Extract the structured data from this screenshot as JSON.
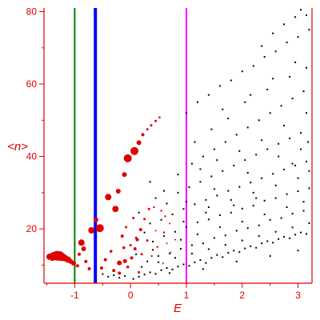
{
  "chart_data": {
    "type": "scatter",
    "xlabel": "E",
    "ylabel": "<n>",
    "xlim": [
      -1.55,
      3.25
    ],
    "ylim": [
      5,
      81
    ],
    "x_ticks": [
      -1,
      0,
      1,
      2,
      3
    ],
    "x_tick_labels": [
      "-1",
      "0",
      "1",
      "2",
      "3"
    ],
    "y_ticks": [
      20,
      40,
      60,
      80
    ],
    "y_tick_labels": [
      "20",
      "40",
      "60",
      "80"
    ],
    "grid": false,
    "colors": {
      "axes": "#e00000",
      "red_series": "#e00000",
      "black_series": "#000000",
      "line_green": "#008000",
      "line_blue": "#0000ff",
      "line_magenta": "#ff00ff"
    },
    "vertical_lines": [
      {
        "x": -1.0,
        "color": "#008000"
      },
      {
        "x": -0.63,
        "color": "#0000ff"
      },
      {
        "x": 1.0,
        "color": "#ff00ff"
      }
    ],
    "series": [
      {
        "color": "#e00000",
        "marker": "circle",
        "points": [
          [
            -1.45,
            12.3,
            4
          ],
          [
            -1.38,
            12.5,
            5
          ],
          [
            -1.32,
            12.6,
            6
          ],
          [
            -1.27,
            12.5,
            6
          ],
          [
            -1.22,
            12.2,
            5
          ],
          [
            -1.17,
            11.9,
            4
          ],
          [
            -1.12,
            11.5,
            4
          ],
          [
            -1.07,
            11.0,
            3
          ],
          [
            -1.02,
            10.5,
            3
          ],
          [
            -0.95,
            9.8,
            2
          ],
          [
            -1.3,
            13.0,
            3
          ],
          [
            -1.4,
            11.8,
            3
          ],
          [
            -0.88,
            16.2,
            4
          ],
          [
            -0.84,
            14.5,
            3
          ],
          [
            -0.92,
            13.0,
            2
          ],
          [
            -0.8,
            11.0,
            2
          ],
          [
            -0.74,
            9.0,
            2
          ],
          [
            -0.7,
            19.6,
            4
          ],
          [
            -0.62,
            22.5,
            3
          ],
          [
            -0.55,
            20.2,
            5
          ],
          [
            -0.4,
            28.8,
            4
          ],
          [
            -0.27,
            25.5,
            4
          ],
          [
            -0.22,
            30.4,
            3
          ],
          [
            -0.11,
            35.0,
            3
          ],
          [
            -0.05,
            39.5,
            5
          ],
          [
            0.07,
            41.5,
            5
          ],
          [
            0.15,
            43.8,
            3
          ],
          [
            0.22,
            46.0,
            2
          ],
          [
            0.3,
            47.5,
            1.5
          ],
          [
            0.37,
            48.6,
            1.5
          ],
          [
            0.45,
            49.8,
            1.5
          ],
          [
            0.52,
            50.8,
            1.3
          ],
          [
            -0.2,
            10.6,
            3
          ],
          [
            -0.1,
            11.1,
            2.5
          ],
          [
            0.02,
            12.0,
            2
          ],
          [
            0.08,
            14.5,
            2
          ],
          [
            0.12,
            17.0,
            2
          ],
          [
            0.18,
            19.8,
            2
          ],
          [
            0.25,
            22.7,
            1.5
          ],
          [
            0.33,
            25.5,
            1.5
          ],
          [
            0.42,
            26.0,
            1.2
          ],
          [
            0.55,
            25.0,
            1.2
          ],
          [
            0.62,
            23.5,
            1.2
          ],
          [
            -0.15,
            18.0,
            2
          ],
          [
            -0.08,
            20.5,
            1.5
          ],
          [
            0.05,
            23.0,
            1.5
          ],
          [
            0.1,
            17.5,
            1.5
          ],
          [
            -0.12,
            14.8,
            1.8
          ],
          [
            0.0,
            15.5,
            1.5
          ],
          [
            0.2,
            13.0,
            1.5
          ],
          [
            0.3,
            16.8,
            1.5
          ],
          [
            -0.3,
            8.5,
            2
          ],
          [
            -0.2,
            7.8,
            2
          ],
          [
            -0.05,
            9.5,
            1.8
          ],
          [
            0.15,
            8.0,
            1.5
          ],
          [
            0.38,
            12.5,
            1.2
          ],
          [
            0.48,
            15.0,
            1.2
          ],
          [
            0.6,
            19.0,
            1.2
          ],
          [
            0.7,
            21.5,
            1.0
          ],
          [
            0.8,
            17.0,
            1.0
          ],
          [
            0.58,
            10.5,
            1.0
          ],
          [
            0.72,
            13.5,
            1.0
          ],
          [
            -0.45,
            11.5,
            2
          ],
          [
            -0.52,
            9.2,
            2
          ],
          [
            -0.35,
            13.8,
            1.8
          ],
          [
            0.45,
            19.5,
            1.0
          ],
          [
            0.65,
            16.0,
            1.0
          ]
        ]
      },
      {
        "color": "#000000",
        "marker": "dot",
        "points": [
          [
            -0.5,
            7.5
          ],
          [
            -0.4,
            6.8
          ],
          [
            -0.3,
            7.2
          ],
          [
            -0.2,
            6.5
          ],
          [
            -0.1,
            7.0
          ],
          [
            0.05,
            6.2
          ],
          [
            0.15,
            6.8
          ],
          [
            0.25,
            7.4
          ],
          [
            0.35,
            8.0
          ],
          [
            0.45,
            7.6
          ],
          [
            0.55,
            8.6
          ],
          [
            0.65,
            9.2
          ],
          [
            0.75,
            8.8
          ],
          [
            0.85,
            9.6
          ],
          [
            0.95,
            10.2
          ],
          [
            1.05,
            9.8
          ],
          [
            1.15,
            10.8
          ],
          [
            1.25,
            11.4
          ],
          [
            1.35,
            10.6
          ],
          [
            1.45,
            12.0
          ],
          [
            1.55,
            12.8
          ],
          [
            1.65,
            12.2
          ],
          [
            1.75,
            13.4
          ],
          [
            1.85,
            14.0
          ],
          [
            1.95,
            13.6
          ],
          [
            2.05,
            14.6
          ],
          [
            2.15,
            15.2
          ],
          [
            2.25,
            14.8
          ],
          [
            2.35,
            16.0
          ],
          [
            2.45,
            16.6
          ],
          [
            2.55,
            16.2
          ],
          [
            2.65,
            17.2
          ],
          [
            2.75,
            17.8
          ],
          [
            2.85,
            17.4
          ],
          [
            2.95,
            18.4
          ],
          [
            3.05,
            19.0
          ],
          [
            3.15,
            18.6
          ],
          [
            0.3,
            11.0
          ],
          [
            0.5,
            12.5
          ],
          [
            0.7,
            13.2
          ],
          [
            0.9,
            14.5
          ],
          [
            1.1,
            15.5
          ],
          [
            1.3,
            16.0
          ],
          [
            1.5,
            17.5
          ],
          [
            1.7,
            18.2
          ],
          [
            1.9,
            19.5
          ],
          [
            2.1,
            20.2
          ],
          [
            2.3,
            21.0
          ],
          [
            2.5,
            22.5
          ],
          [
            2.7,
            23.0
          ],
          [
            2.9,
            24.2
          ],
          [
            3.1,
            25.0
          ],
          [
            0.4,
            16.5
          ],
          [
            0.6,
            18.0
          ],
          [
            0.8,
            19.2
          ],
          [
            1.0,
            20.5
          ],
          [
            1.2,
            21.8
          ],
          [
            1.4,
            22.6
          ],
          [
            1.6,
            23.8
          ],
          [
            1.8,
            24.5
          ],
          [
            2.0,
            25.6
          ],
          [
            2.2,
            26.4
          ],
          [
            2.4,
            27.8
          ],
          [
            2.6,
            28.5
          ],
          [
            2.8,
            29.6
          ],
          [
            3.0,
            30.4
          ],
          [
            3.2,
            31.2
          ],
          [
            0.55,
            22.5
          ],
          [
            0.75,
            24.0
          ],
          [
            0.95,
            25.5
          ],
          [
            1.15,
            26.8
          ],
          [
            1.35,
            28.0
          ],
          [
            1.55,
            29.2
          ],
          [
            1.75,
            30.5
          ],
          [
            1.95,
            31.6
          ],
          [
            2.15,
            32.8
          ],
          [
            2.35,
            34.0
          ],
          [
            2.55,
            35.2
          ],
          [
            2.75,
            36.4
          ],
          [
            2.95,
            37.5
          ],
          [
            3.15,
            38.6
          ],
          [
            0.85,
            30.0
          ],
          [
            1.05,
            31.5
          ],
          [
            1.25,
            33.0
          ],
          [
            1.45,
            34.5
          ],
          [
            1.65,
            36.0
          ],
          [
            1.85,
            37.5
          ],
          [
            2.05,
            39.0
          ],
          [
            2.25,
            40.5
          ],
          [
            2.45,
            42.0
          ],
          [
            2.65,
            43.5
          ],
          [
            2.85,
            45.0
          ],
          [
            3.05,
            46.5
          ],
          [
            1.1,
            38.0
          ],
          [
            1.3,
            40.0
          ],
          [
            1.5,
            42.0
          ],
          [
            1.7,
            44.0
          ],
          [
            1.9,
            46.0
          ],
          [
            2.1,
            48.0
          ],
          [
            2.3,
            50.0
          ],
          [
            2.5,
            52.0
          ],
          [
            2.7,
            54.0
          ],
          [
            2.9,
            56.0
          ],
          [
            3.1,
            58.0
          ],
          [
            1.0,
            52.0
          ],
          [
            1.2,
            55.0
          ],
          [
            1.4,
            57.0
          ],
          [
            1.6,
            59.5
          ],
          [
            1.8,
            61.0
          ],
          [
            2.0,
            63.5
          ],
          [
            2.2,
            65.0
          ],
          [
            2.4,
            67.5
          ],
          [
            2.6,
            69.0
          ],
          [
            2.8,
            71.5
          ],
          [
            3.0,
            73.0
          ],
          [
            3.2,
            75.0
          ],
          [
            2.75,
            76.5
          ],
          [
            2.95,
            78.5
          ],
          [
            3.05,
            80.5
          ],
          [
            3.15,
            79.0
          ],
          [
            2.55,
            74.0
          ],
          [
            2.35,
            70.5
          ],
          [
            0.35,
            33.0
          ],
          [
            0.45,
            28.5
          ],
          [
            0.65,
            27.0
          ],
          [
            0.85,
            35.0
          ],
          [
            1.15,
            44.0
          ],
          [
            1.45,
            47.5
          ],
          [
            1.75,
            50.5
          ],
          [
            2.05,
            55.0
          ],
          [
            2.45,
            58.5
          ],
          [
            2.85,
            62.0
          ],
          [
            3.15,
            64.5
          ],
          [
            0.2,
            9.5
          ],
          [
            0.5,
            10.8
          ],
          [
            0.8,
            12.0
          ],
          [
            1.1,
            13.2
          ],
          [
            1.4,
            14.4
          ],
          [
            1.7,
            15.6
          ],
          [
            2.0,
            16.8
          ],
          [
            2.3,
            18.0
          ],
          [
            2.6,
            19.2
          ],
          [
            2.9,
            20.4
          ],
          [
            3.2,
            21.6
          ],
          [
            0.1,
            13.0
          ],
          [
            0.4,
            14.2
          ],
          [
            0.9,
            17.0
          ],
          [
            1.2,
            18.5
          ],
          [
            1.6,
            20.5
          ],
          [
            2.0,
            22.0
          ],
          [
            2.4,
            24.0
          ],
          [
            2.8,
            26.0
          ],
          [
            3.1,
            27.5
          ],
          [
            0.6,
            30.5
          ],
          [
            1.0,
            27.5
          ],
          [
            1.4,
            26.0
          ],
          [
            1.8,
            28.0
          ],
          [
            2.2,
            30.0
          ],
          [
            2.6,
            32.0
          ],
          [
            3.0,
            34.0
          ],
          [
            3.2,
            36.0
          ],
          [
            1.25,
            36.5
          ],
          [
            1.55,
            39.0
          ],
          [
            1.95,
            41.5
          ],
          [
            2.35,
            44.5
          ],
          [
            2.75,
            48.5
          ],
          [
            3.15,
            52.0
          ],
          [
            1.65,
            53.0
          ],
          [
            2.15,
            57.0
          ],
          [
            2.55,
            61.5
          ],
          [
            2.95,
            66.0
          ],
          [
            0.25,
            19.0
          ],
          [
            0.15,
            24.5
          ],
          [
            0.35,
            21.5
          ],
          [
            0.7,
            7.8
          ],
          [
            1.3,
            8.9
          ],
          [
            1.9,
            11.0
          ],
          [
            2.5,
            12.5
          ],
          [
            3.0,
            14.0
          ],
          [
            0.95,
            22.0
          ],
          [
            1.35,
            24.5
          ],
          [
            1.85,
            26.5
          ],
          [
            2.25,
            28.5
          ],
          [
            2.65,
            40.0
          ],
          [
            3.05,
            42.0
          ],
          [
            1.5,
            31.0
          ],
          [
            2.1,
            35.5
          ],
          [
            2.9,
            38.0
          ],
          [
            3.18,
            44.0
          ]
        ]
      }
    ]
  }
}
